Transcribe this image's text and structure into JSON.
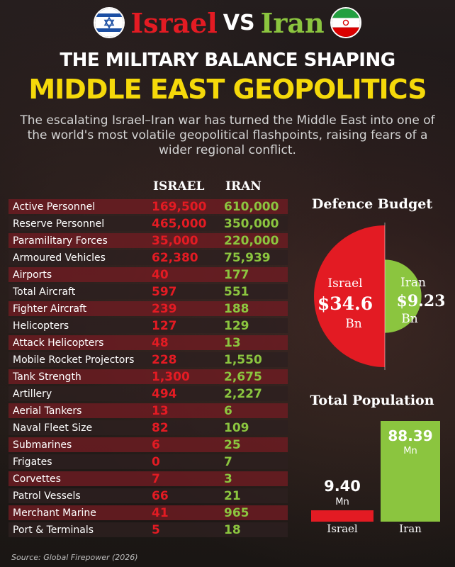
{
  "header": {
    "israel": "Israel",
    "vs": "VS",
    "iran": "Iran",
    "title_line1": "THE MILITARY BALANCE SHAPING",
    "title_line2": "MIDDLE EAST GEOPOLITICS",
    "subtitle": "The escalating Israel–Iran war has turned the Middle East into one of the world's most volatile geopolitical flashpoints, raising fears of a wider regional conflict."
  },
  "colors": {
    "israel": "#e31b23",
    "iran": "#8bc53f",
    "title_yellow": "#f5d90a"
  },
  "table": {
    "col_israel": "ISRAEL",
    "col_iran": "IRAN",
    "rows": [
      {
        "metric": "Active Personnel",
        "israel": "169,500",
        "iran": "610,000"
      },
      {
        "metric": "Reserve Personnel",
        "israel": "465,000",
        "iran": "350,000"
      },
      {
        "metric": "Paramilitary Forces",
        "israel": "35,000",
        "iran": "220,000"
      },
      {
        "metric": "Armoured Vehicles",
        "israel": "62,380",
        "iran": "75,939"
      },
      {
        "metric": "Airports",
        "israel": "40",
        "iran": "177"
      },
      {
        "metric": "Total Aircraft",
        "israel": "597",
        "iran": "551"
      },
      {
        "metric": "Fighter Aircraft",
        "israel": "239",
        "iran": "188"
      },
      {
        "metric": "Helicopters",
        "israel": "127",
        "iran": "129"
      },
      {
        "metric": "Attack Helicopters",
        "israel": "48",
        "iran": "13"
      },
      {
        "metric": "Mobile Rocket Projectors",
        "israel": "228",
        "iran": "1,550"
      },
      {
        "metric": "Tank Strength",
        "israel": "1,300",
        "iran": "2,675"
      },
      {
        "metric": "Artillery",
        "israel": "494",
        "iran": "2,227"
      },
      {
        "metric": "Aerial Tankers",
        "israel": "13",
        "iran": "6"
      },
      {
        "metric": "Naval Fleet Size",
        "israel": "82",
        "iran": "109"
      },
      {
        "metric": "Submarines",
        "israel": "6",
        "iran": "25"
      },
      {
        "metric": "Frigates",
        "israel": "0",
        "iran": "7"
      },
      {
        "metric": "Corvettes",
        "israel": "7",
        "iran": "3"
      },
      {
        "metric": "Patrol Vessels",
        "israel": "66",
        "iran": "21"
      },
      {
        "metric": "Merchant Marine",
        "israel": "41",
        "iran": "965"
      },
      {
        "metric": "Port & Terminals",
        "israel": "5",
        "iran": "18"
      }
    ]
  },
  "source": "Source: Global Firepower (2026)",
  "chart_data": [
    {
      "type": "pie",
      "title": "Defence Budget",
      "unit": "Bn",
      "series": [
        {
          "name": "Israel",
          "value": 34.6,
          "label": "$34.6"
        },
        {
          "name": "Iran",
          "value": 9.23,
          "label": "$9.23"
        }
      ]
    },
    {
      "type": "bar",
      "title": "Total Population",
      "unit": "Mn",
      "categories": [
        "Israel",
        "Iran"
      ],
      "values": [
        9.4,
        88.39
      ],
      "labels": [
        "9.40",
        "88.39"
      ]
    }
  ]
}
